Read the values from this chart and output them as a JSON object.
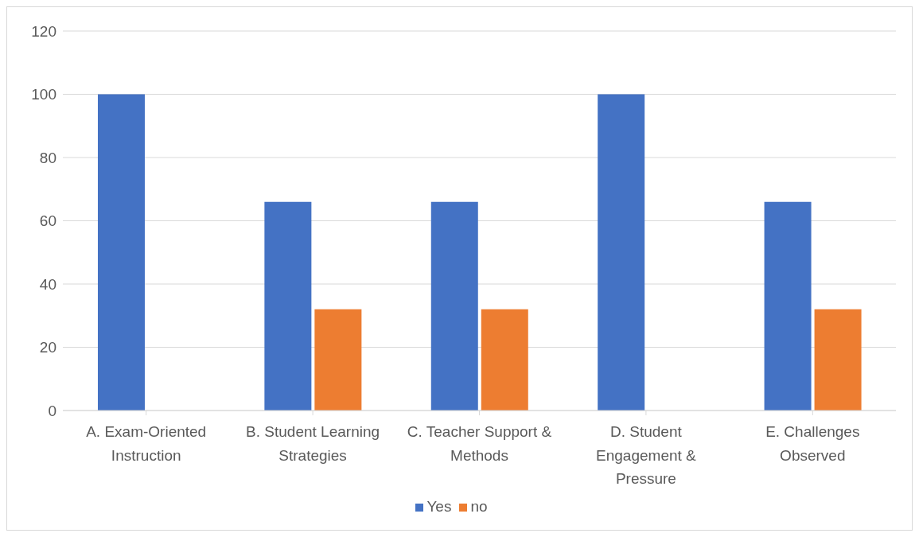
{
  "chart_data": {
    "type": "bar",
    "categories": [
      "A. Exam-Oriented Instruction",
      "B. Student Learning Strategies",
      "C. Teacher Support & Methods",
      "D. Student Engagement & Pressure",
      "E. Challenges Observed"
    ],
    "series": [
      {
        "name": "Yes",
        "color": "#4472c4",
        "values": [
          100,
          66,
          66,
          100,
          66
        ]
      },
      {
        "name": "no",
        "color": "#ed7d31",
        "values": [
          0,
          32,
          32,
          0,
          32
        ]
      }
    ],
    "ylim": [
      0,
      120
    ],
    "yticks": [
      0,
      20,
      40,
      60,
      80,
      100,
      120
    ],
    "grid": "y",
    "legend": "bottom"
  }
}
